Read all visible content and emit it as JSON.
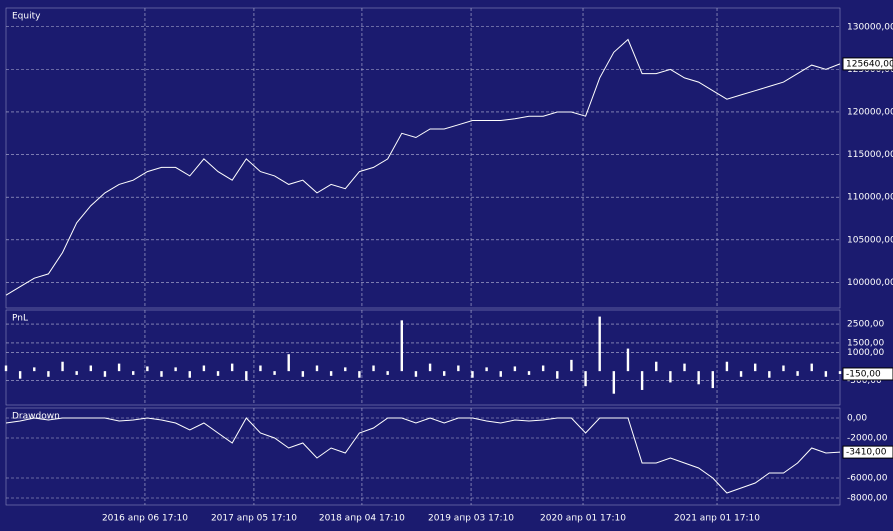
{
  "chart_data": [
    {
      "type": "line",
      "title": "Equity",
      "color": "#ffffff",
      "values": [
        98500,
        99500,
        100500,
        101000,
        103500,
        107000,
        109000,
        110500,
        111500,
        112000,
        113000,
        113500,
        113500,
        112500,
        114500,
        113000,
        112000,
        114500,
        113000,
        112500,
        111500,
        112000,
        110500,
        111500,
        111000,
        113000,
        113500,
        114500,
        117500,
        117000,
        118000,
        118000,
        118500,
        119000,
        119000,
        119000,
        119200,
        119500,
        119500,
        120000,
        120000,
        119500,
        124000,
        127000,
        128500,
        124500,
        124500,
        125000,
        124000,
        123500,
        122500,
        121500,
        122000,
        122500,
        123000,
        123500,
        124500,
        125500,
        125000,
        125640
      ],
      "last_label": "125640,00",
      "ylim": [
        97000,
        132200
      ],
      "yticks": [
        {
          "value": 100000,
          "label": "100000,00"
        },
        {
          "value": 105000,
          "label": "105000,00"
        },
        {
          "value": 110000,
          "label": "110000,00"
        },
        {
          "value": 115000,
          "label": "115000,00"
        },
        {
          "value": 120000,
          "label": "120000,00"
        },
        {
          "value": 125000,
          "label": "125000,00"
        },
        {
          "value": 130000,
          "label": "130000,00"
        }
      ],
      "grid": true
    },
    {
      "type": "bar",
      "title": "PnL",
      "color": "#ffffff",
      "values": [
        300,
        -400,
        200,
        -300,
        500,
        -200,
        300,
        -300,
        400,
        -200,
        250,
        -300,
        200,
        -350,
        300,
        -250,
        400,
        -500,
        300,
        -200,
        900,
        -300,
        300,
        -250,
        200,
        -350,
        300,
        -200,
        2700,
        -300,
        400,
        -250,
        300,
        -350,
        200,
        -300,
        250,
        -200,
        300,
        -400,
        600,
        -800,
        2900,
        -1200,
        1200,
        -1000,
        500,
        -600,
        400,
        -700,
        -900,
        500,
        -300,
        400,
        -350,
        300,
        -250,
        400,
        -300,
        -150
      ],
      "last_label": "-150,00",
      "ylim": [
        -1800,
        3250
      ],
      "yticks": [
        {
          "value": 2500,
          "label": "2500,00"
        },
        {
          "value": 1500,
          "label": "1500,00"
        },
        {
          "value": 1000,
          "label": "1000,00"
        },
        {
          "value": -500,
          "label": "-500,00"
        }
      ],
      "grid": true
    },
    {
      "type": "line",
      "title": "Drawdown",
      "color": "#ffffff",
      "values": [
        -500,
        -300,
        0,
        -200,
        0,
        0,
        0,
        0,
        -300,
        -200,
        0,
        -200,
        -500,
        -1200,
        -500,
        -1500,
        -2500,
        0,
        -1500,
        -2000,
        -3000,
        -2500,
        -4000,
        -3000,
        -3500,
        -1500,
        -1000,
        0,
        0,
        -500,
        0,
        -500,
        0,
        0,
        -300,
        -500,
        -200,
        -300,
        -200,
        0,
        0,
        -1500,
        0,
        0,
        0,
        -4500,
        -4500,
        -4000,
        -4500,
        -5000,
        -6000,
        -7500,
        -7000,
        -6500,
        -5500,
        -5500,
        -4500,
        -3000,
        -3500,
        -3410
      ],
      "last_label": "-3410,00",
      "ylim": [
        -8700,
        1000
      ],
      "yticks": [
        {
          "value": 0,
          "label": "0,00"
        },
        {
          "value": -2000,
          "label": "-2000,00"
        },
        {
          "value": -6000,
          "label": "-6000,00"
        },
        {
          "value": -8000,
          "label": "-8000,00"
        }
      ],
      "grid": true,
      "xlim": [
        0,
        59
      ],
      "xticks": [
        {
          "value": 9.83,
          "label": "2016 апр 06 17:10"
        },
        {
          "value": 17.54,
          "label": "2017 апр 05 17:10"
        },
        {
          "value": 25.18,
          "label": "2018 апр 04 17:10"
        },
        {
          "value": 32.9,
          "label": "2019 апр 03 17:10"
        },
        {
          "value": 40.82,
          "label": "2020 апр 01 17:10"
        },
        {
          "value": 50.3,
          "label": "2021 апр 01 17:10"
        }
      ]
    }
  ]
}
